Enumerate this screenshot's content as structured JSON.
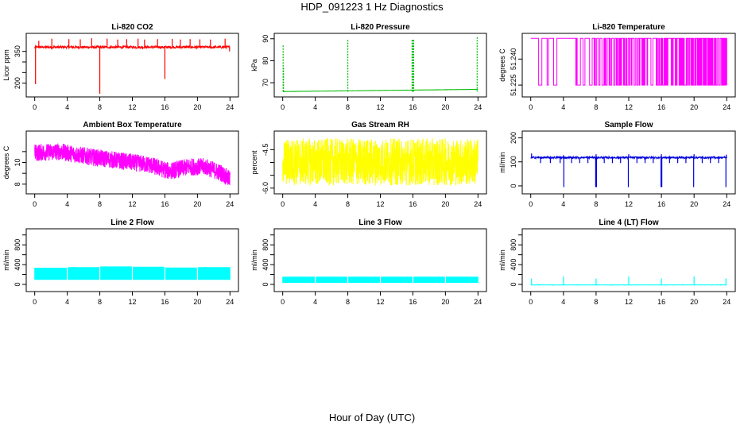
{
  "figure": {
    "title": "HDP_091223  1 Hz Diagnostics",
    "xlabel": "Hour of Day (UTC)"
  },
  "chart_data": [
    {
      "type": "line",
      "title": "Li-820 CO2",
      "ylabel": "Licor ppm",
      "color": "#ff0000",
      "xlim": [
        0,
        24
      ],
      "xticks": [
        0,
        4,
        8,
        12,
        16,
        20,
        24
      ],
      "ylim": [
        150,
        420
      ],
      "yticks": [
        200,
        250,
        300,
        350
      ],
      "ytick_labels": [
        "200",
        "",
        "",
        "350"
      ],
      "baseline": 370,
      "noise": 6,
      "spikes_up": [
        [
          0.5,
          400
        ],
        [
          2.1,
          410
        ],
        [
          4.2,
          408
        ],
        [
          5.6,
          407
        ],
        [
          7.0,
          412
        ],
        [
          8.9,
          410
        ],
        [
          10.2,
          406
        ],
        [
          11.3,
          408
        ],
        [
          12.7,
          410
        ],
        [
          13.5,
          406
        ],
        [
          15.1,
          408
        ],
        [
          16.9,
          409
        ],
        [
          17.9,
          406
        ],
        [
          19.1,
          408
        ],
        [
          20.3,
          407
        ],
        [
          21.6,
          406
        ],
        [
          23.4,
          410
        ]
      ],
      "spikes_down": [
        [
          0.1,
          195
        ],
        [
          8.0,
          150
        ],
        [
          16.0,
          220
        ],
        [
          23.95,
          350
        ]
      ],
      "style": "line"
    },
    {
      "type": "line",
      "title": "Li-820 Pressure",
      "ylabel": "kPa",
      "color": "#00bb00",
      "xlim": [
        0,
        24
      ],
      "xticks": [
        0,
        4,
        8,
        12,
        16,
        20,
        24
      ],
      "ylim": [
        65,
        91
      ],
      "yticks": [
        70,
        80,
        90
      ],
      "ytick_labels": [
        "70",
        "80",
        "90"
      ],
      "baseline": 66,
      "baseline_end": 67,
      "noise": 0.05,
      "spikes_up": [
        [
          0.05,
          87
        ],
        [
          0.1,
          77
        ],
        [
          8.0,
          90
        ],
        [
          15.9,
          90
        ],
        [
          16.0,
          90
        ],
        [
          16.1,
          90
        ],
        [
          23.9,
          91
        ]
      ],
      "spikes_down": [],
      "style": "dashed"
    },
    {
      "type": "line",
      "title": "Li-820 Temperature",
      "ylabel": "degrees C",
      "color": "#ff00ff",
      "xlim": [
        0,
        24
      ],
      "xticks": [
        0,
        4,
        8,
        12,
        16,
        20,
        24
      ],
      "ylim": [
        51.22,
        51.253
      ],
      "yticks": [
        51.225,
        51.24
      ],
      "ytick_labels": [
        "51.225",
        "51.240"
      ],
      "low": 51.225,
      "high": 51.252,
      "toggle_density_start": 0.12,
      "toggle_density_end": 1.6,
      "style": "toggle"
    },
    {
      "type": "line",
      "title": "Ambient Box Temperature",
      "ylabel": "degrees C",
      "color": "#ff00ff",
      "xlim": [
        0,
        24
      ],
      "xticks": [
        0,
        4,
        8,
        12,
        16,
        20,
        24
      ],
      "ylim": [
        7.4,
        12.6
      ],
      "yticks": [
        8,
        9,
        10,
        11
      ],
      "ytick_labels": [
        "8",
        "",
        "10",
        ""
      ],
      "center_profile": [
        [
          0,
          10.9
        ],
        [
          3,
          11.0
        ],
        [
          7,
          10.5
        ],
        [
          11,
          10.1
        ],
        [
          14,
          9.8
        ],
        [
          16.5,
          9.2
        ],
        [
          19,
          9.6
        ],
        [
          21,
          9.6
        ],
        [
          23,
          9.0
        ],
        [
          24,
          8.4
        ]
      ],
      "band": 0.8,
      "style": "band"
    },
    {
      "type": "line",
      "title": "Gas Stream RH",
      "ylabel": "percent",
      "color": "#ffff00",
      "xlim": [
        0,
        24
      ],
      "xticks": [
        0,
        4,
        8,
        12,
        16,
        20,
        24
      ],
      "ylim": [
        -6.1,
        -3.9
      ],
      "yticks": [
        -6,
        -5.5,
        -5,
        -4.5
      ],
      "ytick_labels": [
        "-6.0",
        "",
        "",
        "-4.5"
      ],
      "center_profile": [
        [
          0,
          -4.98
        ],
        [
          24,
          -4.98
        ]
      ],
      "band": 0.92,
      "style": "band"
    },
    {
      "type": "line",
      "title": "Sample Flow",
      "ylabel": "ml/min",
      "color": "#0000dd",
      "xlim": [
        0,
        24
      ],
      "xticks": [
        0,
        4,
        8,
        12,
        16,
        20,
        24
      ],
      "ylim": [
        -20,
        215
      ],
      "yticks": [
        0,
        100,
        200
      ],
      "ytick_labels": [
        "0",
        "100",
        "200"
      ],
      "baseline": 118,
      "noise": 4,
      "spikes_up": [
        [
          0.1,
          135
        ],
        [
          4.0,
          128
        ],
        [
          8.0,
          132
        ],
        [
          12.0,
          132
        ],
        [
          16.0,
          132
        ],
        [
          20.0,
          132
        ],
        [
          23.95,
          130
        ]
      ],
      "spikes_down": [
        [
          4.05,
          -5
        ],
        [
          7.95,
          -5
        ],
        [
          8.05,
          -5
        ],
        [
          11.95,
          -5
        ],
        [
          15.95,
          -5
        ],
        [
          16.05,
          -5
        ],
        [
          19.95,
          -5
        ],
        [
          23.9,
          -5
        ],
        [
          1.2,
          95
        ],
        [
          2.4,
          95
        ],
        [
          3.6,
          95
        ],
        [
          5.0,
          95
        ],
        [
          6.0,
          95
        ],
        [
          7.0,
          95
        ],
        [
          9.0,
          95
        ],
        [
          10.0,
          95
        ],
        [
          11.0,
          95
        ],
        [
          13.0,
          95
        ],
        [
          14.0,
          95
        ],
        [
          15.0,
          95
        ],
        [
          17.0,
          95
        ],
        [
          18.0,
          95
        ],
        [
          19.0,
          95
        ],
        [
          21.0,
          95
        ],
        [
          22.0,
          95
        ],
        [
          23.0,
          95
        ]
      ],
      "style": "line"
    },
    {
      "type": "area",
      "title": "Line 2 Flow",
      "ylabel": "ml/min",
      "color": "#00ffff",
      "xlim": [
        0,
        24
      ],
      "xticks": [
        0,
        4,
        8,
        12,
        16,
        20,
        24
      ],
      "ylim": [
        -80,
        1060
      ],
      "yticks": [
        0,
        200,
        400,
        600,
        800,
        1000
      ],
      "ytick_labels": [
        "0",
        "",
        "400",
        "",
        "800",
        ""
      ],
      "lower": 100,
      "upper_profile": [
        [
          0,
          330
        ],
        [
          4,
          330
        ],
        [
          4.01,
          340
        ],
        [
          8,
          340
        ],
        [
          8.01,
          355
        ],
        [
          12,
          355
        ],
        [
          12.01,
          350
        ],
        [
          16,
          350
        ],
        [
          16.01,
          335
        ],
        [
          20,
          335
        ],
        [
          20.01,
          340
        ],
        [
          24,
          340
        ]
      ],
      "gaps": [
        4,
        8,
        12,
        16,
        20
      ],
      "style": "area"
    },
    {
      "type": "area",
      "title": "Line 3 Flow",
      "ylabel": "ml/min",
      "color": "#00ffff",
      "xlim": [
        0,
        24
      ],
      "xticks": [
        0,
        4,
        8,
        12,
        16,
        20,
        24
      ],
      "ylim": [
        -80,
        1060
      ],
      "yticks": [
        0,
        200,
        400,
        600,
        800,
        1000
      ],
      "ytick_labels": [
        "0",
        "",
        "400",
        "",
        "800",
        ""
      ],
      "lower": 40,
      "upper_profile": [
        [
          0,
          150
        ],
        [
          24,
          150
        ]
      ],
      "gaps": [
        4,
        8,
        12,
        16,
        20
      ],
      "style": "area"
    },
    {
      "type": "line",
      "title": "Line 4 (LT) Flow",
      "ylabel": "ml/min",
      "color": "#00ffff",
      "xlim": [
        0,
        24
      ],
      "xticks": [
        0,
        4,
        8,
        12,
        16,
        20,
        24
      ],
      "ylim": [
        -80,
        1060
      ],
      "yticks": [
        0,
        200,
        400,
        600,
        800,
        1000
      ],
      "ytick_labels": [
        "0",
        "",
        "400",
        "",
        "800",
        ""
      ],
      "baseline": -10,
      "noise": 4,
      "spikes_up": [
        [
          0.1,
          120
        ],
        [
          4.0,
          160
        ],
        [
          8.0,
          120
        ],
        [
          12.0,
          160
        ],
        [
          16.0,
          120
        ],
        [
          20.0,
          160
        ],
        [
          23.9,
          120
        ]
      ],
      "spikes_down": [],
      "style": "line"
    }
  ]
}
